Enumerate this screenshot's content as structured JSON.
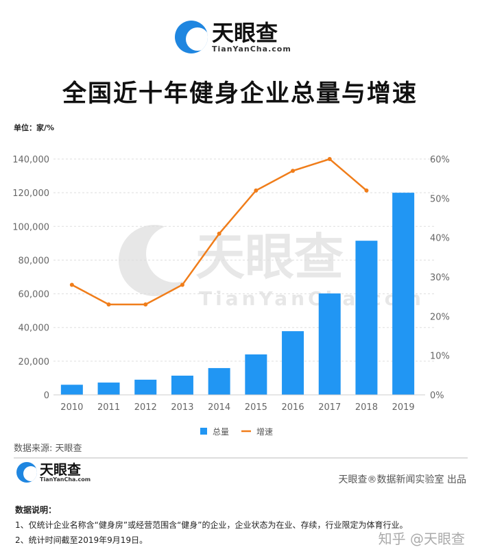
{
  "header": {
    "logo_name": "天眼查",
    "logo_url": "TianYanCha.com",
    "title": "全国近十年健身企业总量与增速",
    "unit": "单位：家/%"
  },
  "chart_data": {
    "type": "bar",
    "title": "全国近十年健身企业总量与增速",
    "categories": [
      "2010",
      "2011",
      "2012",
      "2013",
      "2014",
      "2015",
      "2016",
      "2017",
      "2018",
      "2019"
    ],
    "series": [
      {
        "name": "总量",
        "type": "bar",
        "axis": "left",
        "color": "#2196f3",
        "values": [
          6000,
          7300,
          9000,
          11400,
          15900,
          24000,
          37800,
          60200,
          91500,
          120000
        ]
      },
      {
        "name": "增速",
        "type": "line",
        "axis": "right",
        "color": "#f07d1a",
        "values": [
          28,
          23,
          23,
          28,
          41,
          52,
          57,
          60,
          52,
          null
        ]
      }
    ],
    "ylim_left": [
      0,
      140000
    ],
    "yticks_left": [
      "0",
      "20,000",
      "40,000",
      "60,000",
      "80,000",
      "100,000",
      "120,000",
      "140,000"
    ],
    "ylim_right": [
      0,
      60
    ],
    "yticks_right": [
      "0%",
      "10%",
      "20%",
      "30%",
      "40%",
      "50%",
      "60%"
    ],
    "grid": true,
    "legend": "bottom",
    "watermark": "天眼查 TianYanCha.com"
  },
  "footer": {
    "source": "数据来源: 天眼查",
    "logo_name": "天眼查",
    "logo_url": "TianYanCha.com",
    "credit": "天眼查®数据新闻实验室 出品",
    "notes_title": "数据说明：",
    "note1": "1、仅统计企业名称含“健身房”或经营范围含“健身”的企业，企业状态为在业、存续，行业限定为体育行业。",
    "note2": "2、统计时间截至2019年9月19日。",
    "zhihu": "知乎 @天眼查"
  }
}
